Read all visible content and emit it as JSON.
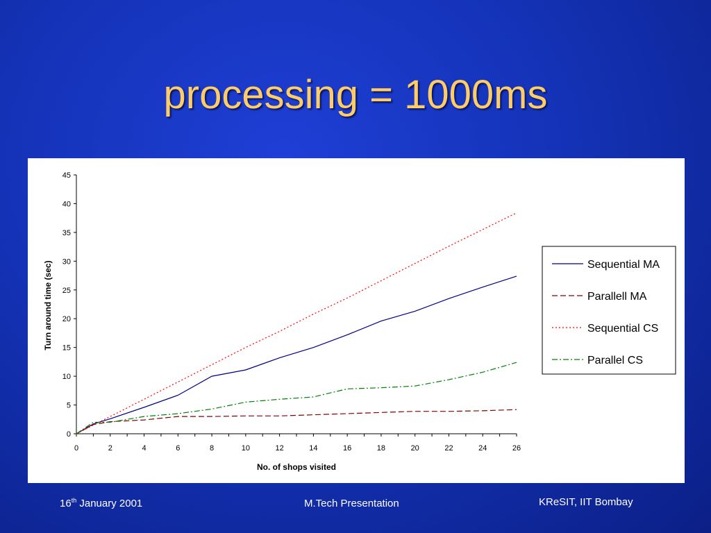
{
  "slide": {
    "title": "processing = 1000ms",
    "footer": {
      "date_day": "16",
      "date_suffix": "th",
      "date_rest": " January 2001",
      "center": "M.Tech Presentation",
      "right": "KReSIT, IIT Bombay"
    }
  },
  "chart_data": {
    "type": "line",
    "xlabel": "No. of shops visited",
    "ylabel": "Turn around time (sec)",
    "xlim": [
      0,
      26
    ],
    "ylim": [
      0,
      45
    ],
    "xticks": [
      0,
      2,
      4,
      6,
      8,
      10,
      12,
      14,
      16,
      18,
      20,
      22,
      24,
      26
    ],
    "yticks": [
      0,
      5,
      10,
      15,
      20,
      25,
      30,
      35,
      40,
      45
    ],
    "grid": false,
    "legend_position": "right",
    "x": [
      0,
      1,
      2,
      4,
      6,
      8,
      10,
      12,
      14,
      16,
      18,
      20,
      22,
      24,
      26
    ],
    "series": [
      {
        "name": "Sequential MA",
        "color": "#000080",
        "dash": "solid",
        "values": [
          0,
          1.7,
          2.6,
          4.6,
          6.7,
          10,
          11.1,
          13.2,
          15,
          17.2,
          19.6,
          21.3,
          23.5,
          25.5,
          27.4
        ]
      },
      {
        "name": "Parallell MA",
        "color": "#800000",
        "dash": "dashed",
        "values": [
          0,
          1.6,
          2.1,
          2.4,
          3.0,
          3.0,
          3.1,
          3.1,
          3.3,
          3.5,
          3.7,
          3.9,
          3.9,
          4.0,
          4.2
        ]
      },
      {
        "name": "Sequential CS",
        "color": "#ff0000",
        "dash": "dotted",
        "values": [
          0,
          1.5,
          3.0,
          6.0,
          9.0,
          12.0,
          15.0,
          17.8,
          20.8,
          23.6,
          26.6,
          29.6,
          32.6,
          35.5,
          38.4
        ]
      },
      {
        "name": "Parallel CS",
        "color": "#008000",
        "dash": "dashdot",
        "values": [
          0,
          2.0,
          2.0,
          3.0,
          3.5,
          4.3,
          5.5,
          6.0,
          6.4,
          7.8,
          8.0,
          8.3,
          9.4,
          10.7,
          12.4
        ]
      }
    ]
  }
}
